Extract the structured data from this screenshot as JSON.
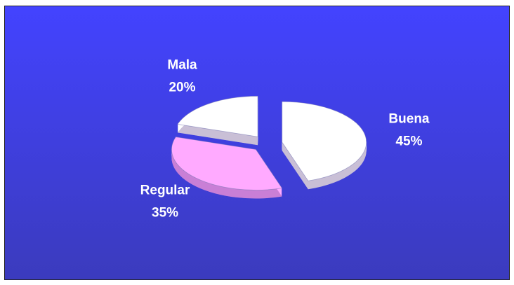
{
  "chart_data": {
    "type": "pie",
    "categories": [
      "Buena",
      "Regular",
      "Mala"
    ],
    "values": [
      45,
      35,
      20
    ],
    "value_labels": [
      "45%",
      "35%",
      "20%"
    ],
    "colors": [
      "#ffffff",
      "#ffaaff",
      "#ffffff"
    ]
  }
}
